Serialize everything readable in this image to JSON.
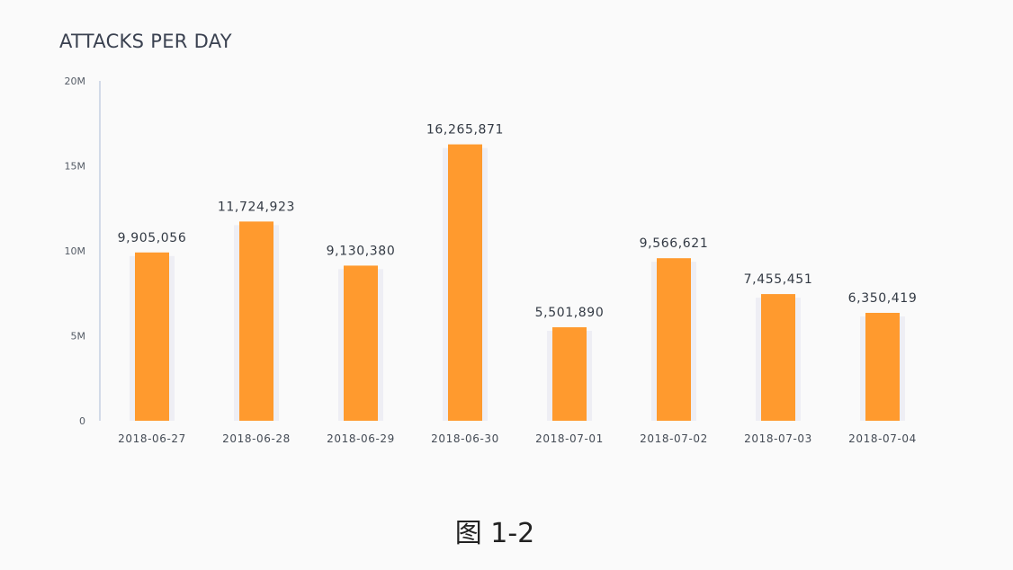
{
  "caption": "图 1-2",
  "chart_data": {
    "type": "bar",
    "title": "ATTACKS PER DAY",
    "xlabel": "",
    "ylabel": "",
    "categories": [
      "2018-06-27",
      "2018-06-28",
      "2018-06-29",
      "2018-06-30",
      "2018-07-01",
      "2018-07-02",
      "2018-07-03",
      "2018-07-04"
    ],
    "values": [
      9905056,
      11724923,
      9130380,
      16265871,
      5501890,
      9566621,
      7455451,
      6350419
    ],
    "value_labels": [
      "9,905,056",
      "11,724,923",
      "9,130,380",
      "16,265,871",
      "5,501,890",
      "9,566,621",
      "7,455,451",
      "6,350,419"
    ],
    "ylim": [
      0,
      20000000
    ],
    "yticks": [
      0,
      5000000,
      10000000,
      15000000,
      20000000
    ],
    "ytick_labels": [
      "0",
      "5M",
      "10M",
      "15M",
      "20M"
    ],
    "grid": false,
    "legend": "none",
    "bar_color": "#ff9a2e",
    "bar_shadow_color": "#eeeef4",
    "axis_color": "#b8c4dc"
  }
}
